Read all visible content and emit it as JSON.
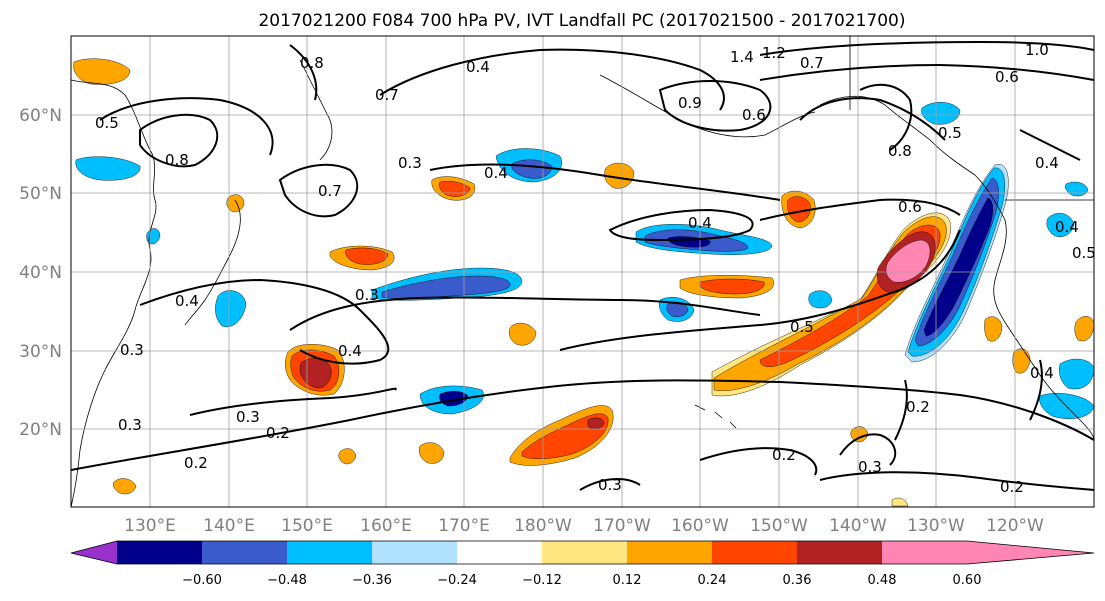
{
  "title": "2017021200 F084 700 hPa PV, IVT Landfall PC (2017021500 - 2017021700)",
  "latitude_labels": [
    "60°N",
    "50°N",
    "40°N",
    "30°N",
    "20°N"
  ],
  "longitude_labels": [
    "130°E",
    "140°E",
    "150°E",
    "160°E",
    "170°E",
    "180°W",
    "170°W",
    "160°W",
    "150°W",
    "140°W",
    "130°W",
    "120°W"
  ],
  "colorbar": {
    "ticks": [
      "−0.60",
      "−0.48",
      "−0.36",
      "−0.24",
      "−0.12",
      "0.12",
      "0.24",
      "0.36",
      "0.48",
      "0.60"
    ],
    "colors": [
      "#9932cc",
      "#00008b",
      "#3a5bcc",
      "#00bfff",
      "#b0e2ff",
      "#ffffff",
      "#ffe680",
      "#ffa500",
      "#ff4500",
      "#b22222",
      "#ff85b2"
    ]
  },
  "contour_labels": [
    "0.8",
    "0.4",
    "0.7",
    "1.4",
    "1.2",
    "0.7",
    "1.0",
    "0.6",
    "0.5",
    "0.8",
    "0.7",
    "0.3",
    "0.9",
    "0.6",
    "0.4",
    "0.4",
    "0.6",
    "0.5",
    "0.4",
    "0.8",
    "0.4",
    "0.5",
    "0.3",
    "0.4",
    "0.4",
    "0.3",
    "0.5",
    "0.3",
    "0.2",
    "0.2",
    "0.3",
    "0.3",
    "0.2",
    "0.4",
    "0.2",
    "0.3",
    "0.2"
  ],
  "fills": {
    "pink": "#ff85b2",
    "darkred": "#b22222",
    "red": "#ff4500",
    "orange": "#ffa500",
    "yellow": "#ffe680",
    "lightblue": "#b0e2ff",
    "cyan": "#00bfff",
    "blue": "#3a5bcc",
    "navy": "#00008b"
  }
}
